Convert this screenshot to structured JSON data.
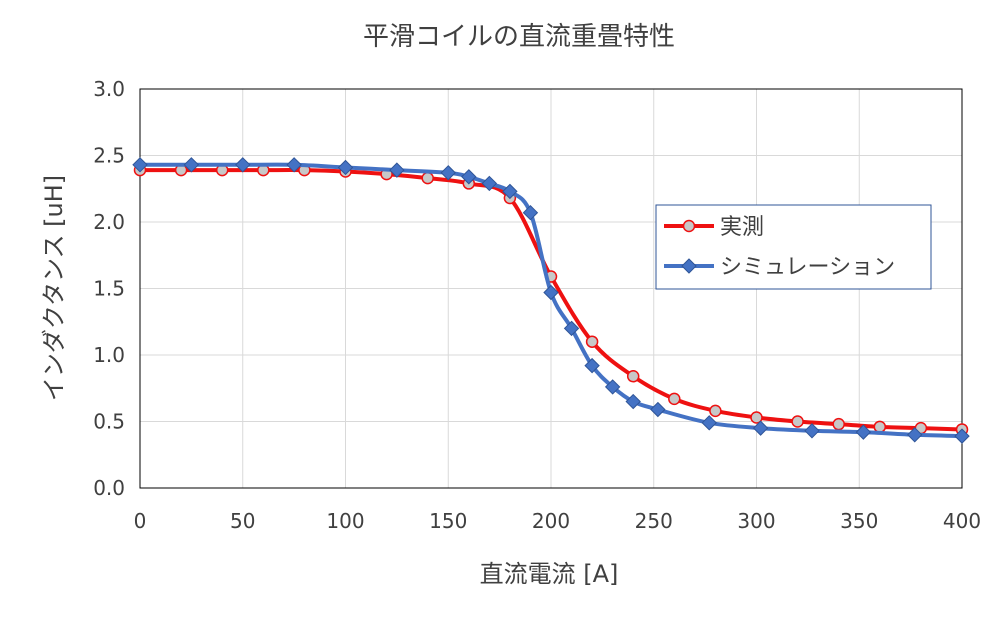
{
  "chart_data": {
    "type": "line",
    "title": "平滑コイルの直流重畳特性",
    "xlabel": "直流電流 [A]",
    "ylabel": "インダクタンス [uH]",
    "xlim": [
      0,
      400
    ],
    "ylim": [
      0,
      3.0
    ],
    "xticks": [
      "0",
      "50",
      "100",
      "150",
      "200",
      "250",
      "300",
      "350",
      "400"
    ],
    "yticks": [
      "0.0",
      "0.5",
      "1.0",
      "1.5",
      "2.0",
      "2.5",
      "3.0"
    ],
    "grid": true,
    "legend_position": "right",
    "series": [
      {
        "name": "実測",
        "color": "#ee1111",
        "marker_fill": "#c8c8c8",
        "marker": "circle",
        "x": [
          0,
          20,
          40,
          60,
          80,
          100,
          120,
          140,
          160,
          180,
          200,
          220,
          240,
          260,
          280,
          300,
          320,
          340,
          360,
          380,
          400
        ],
        "y": [
          2.39,
          2.39,
          2.39,
          2.39,
          2.39,
          2.38,
          2.36,
          2.33,
          2.29,
          2.18,
          1.59,
          1.1,
          0.84,
          0.67,
          0.58,
          0.53,
          0.5,
          0.48,
          0.46,
          0.45,
          0.44
        ]
      },
      {
        "name": "シミュレーション",
        "color": "#4472c4",
        "marker": "diamond",
        "x": [
          0,
          25,
          50,
          75,
          100,
          125,
          150,
          160,
          170,
          180,
          190,
          200,
          210,
          220,
          230,
          240,
          252,
          277,
          302,
          327,
          352,
          377,
          400
        ],
        "y": [
          2.43,
          2.43,
          2.43,
          2.43,
          2.41,
          2.39,
          2.37,
          2.34,
          2.29,
          2.23,
          2.07,
          1.47,
          1.2,
          0.92,
          0.76,
          0.65,
          0.59,
          0.49,
          0.45,
          0.43,
          0.42,
          0.4,
          0.39
        ]
      }
    ]
  }
}
